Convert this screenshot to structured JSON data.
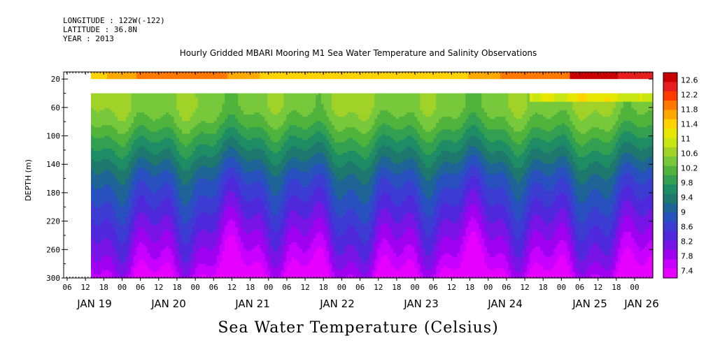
{
  "header": {
    "longitude": "LONGITUDE : 122W(-122)",
    "latitude": "LATITUDE : 36.8N",
    "year": "YEAR : 2013",
    "title": "Hourly Gridded MBARI Mooring M1 Sea Water Temperature and Salinity Observations"
  },
  "footer": {
    "variable_label": "Sea Water Temperature (Celsius)"
  },
  "chart_data": {
    "type": "heatmap",
    "title": "Hourly Gridded MBARI Mooring M1 Sea Water Temperature and Salinity Observations",
    "xlabel": "",
    "ylabel": "DEPTH (m)",
    "y_reversed": true,
    "ylim": [
      300,
      10
    ],
    "y_ticks": [
      20,
      60,
      100,
      140,
      180,
      220,
      260,
      300
    ],
    "x_hour_ticks": [
      "06",
      "12",
      "18",
      "00",
      "06",
      "12",
      "18",
      "00",
      "06",
      "12",
      "18",
      "00",
      "06",
      "12",
      "18",
      "00",
      "06",
      "12",
      "18",
      "00",
      "06",
      "12",
      "18",
      "00",
      "06",
      "12",
      "18",
      "00",
      "06",
      "12",
      "18",
      "00"
    ],
    "x_day_labels": [
      "JAN 19",
      "JAN 20",
      "JAN 21",
      "JAN 22",
      "JAN 23",
      "JAN 24",
      "JAN 25",
      "JAN 26"
    ],
    "data_start_hour_tick": "12 (JAN 19)",
    "depths_m": [
      10,
      20,
      40,
      60,
      80,
      100,
      120,
      140,
      160,
      180,
      200,
      220,
      240,
      260,
      280,
      300
    ],
    "time_samples": [
      "JAN 19 12",
      "JAN 20 00",
      "JAN 20 12",
      "JAN 21 00",
      "JAN 21 12",
      "JAN 22 00",
      "JAN 22 12",
      "JAN 23 00",
      "JAN 23 12",
      "JAN 24 00",
      "JAN 24 12",
      "JAN 25 00",
      "JAN 25 12",
      "JAN 26 00"
    ],
    "temperature_profile_c": [
      11.2,
      11.0,
      null,
      10.4,
      10.2,
      9.9,
      9.6,
      9.3,
      9.0,
      8.8,
      8.6,
      8.4,
      8.2,
      8.0,
      7.8,
      7.5
    ],
    "gap_depth_range_m": [
      20,
      40
    ],
    "surface_max_c": 12.6,
    "colorbar": {
      "labels": [
        "12.6",
        "12.2",
        "11.8",
        "11.4",
        "11",
        "10.6",
        "10.2",
        "9.8",
        "9.4",
        "9",
        "8.6",
        "8.2",
        "7.8",
        "7.4"
      ],
      "colors": [
        "#c80000",
        "#e61e1e",
        "#ff3c00",
        "#ff7800",
        "#ffa800",
        "#ffd200",
        "#e6e600",
        "#c8e614",
        "#a0d228",
        "#78c83c",
        "#50b43c",
        "#32a050",
        "#1e8c64",
        "#1e786e",
        "#1e6496",
        "#2850be",
        "#3c3cd2",
        "#5028dc",
        "#7814e6",
        "#a000f0",
        "#c800ff",
        "#e600ff"
      ],
      "min": 7.4,
      "max": 12.6
    }
  }
}
